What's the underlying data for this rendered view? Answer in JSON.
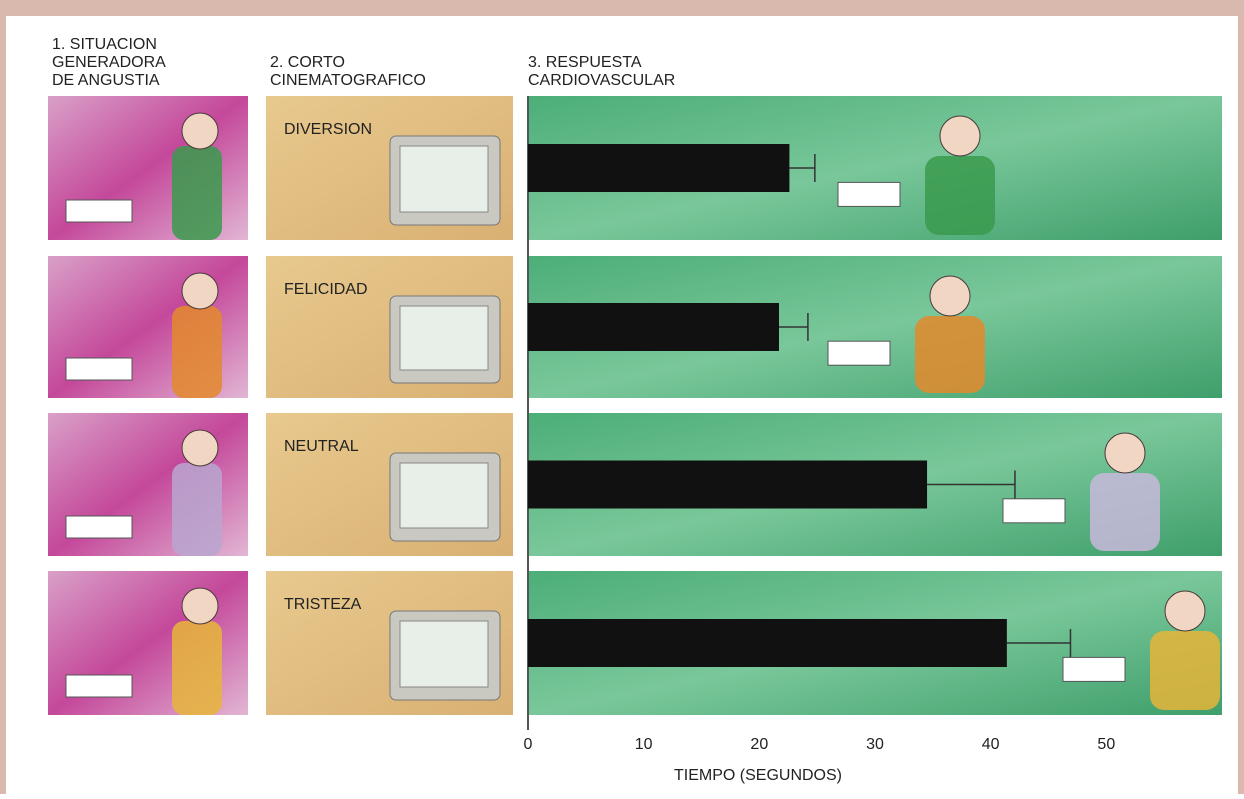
{
  "chart_data": {
    "type": "bar",
    "orientation": "horizontal",
    "column_headers": [
      [
        "1. SITUACION",
        "GENERADORA",
        "DE ANGUSTIA"
      ],
      [
        "2. CORTO",
        "CINEMATOGRAFICO"
      ],
      [
        "3. RESPUESTA",
        "CARDIOVASCULAR"
      ]
    ],
    "categories": [
      "DIVERSION",
      "FELICIDAD",
      "NEUTRAL",
      "TRISTEZA"
    ],
    "values": [
      22.6,
      21.7,
      34.5,
      41.4
    ],
    "errors": [
      2.2,
      2.5,
      7.6,
      5.5
    ],
    "color": "#111111",
    "xlim": [
      0,
      60
    ],
    "xticks": [
      0,
      10,
      20,
      30,
      40,
      50
    ],
    "x_label": "TIEMPO (SEGUNDOS)",
    "grid": false
  }
}
